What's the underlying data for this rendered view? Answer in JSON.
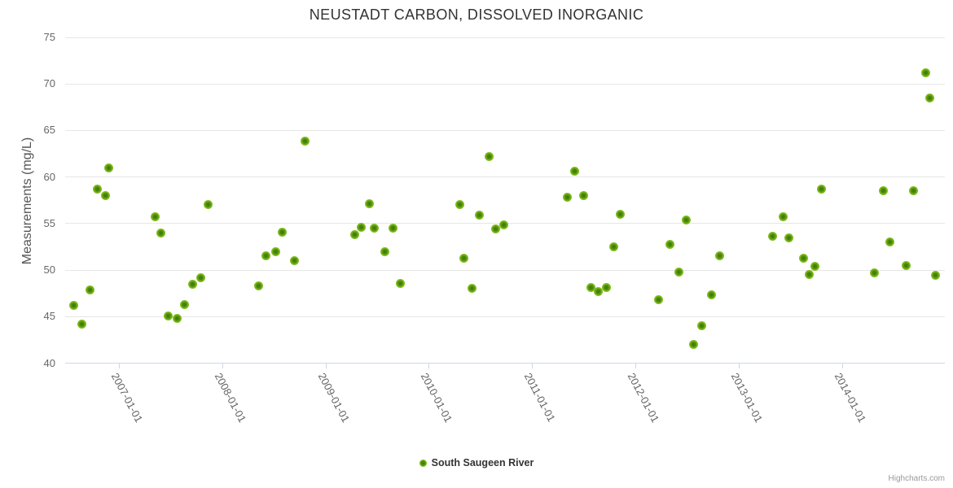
{
  "chart": {
    "title": "NEUSTADT CARBON, DISSOLVED INORGANIC",
    "credits": "Highcharts.com"
  },
  "colors": {
    "accent_marker": "#84bd1e",
    "marker_center": "#3e7c06",
    "gridline": "#e6e6e6",
    "axis_line": "#ccd6eb",
    "title_text": "#333333",
    "axis_label_text": "#666666",
    "legend_text": "#333333",
    "credits_text": "#999999"
  },
  "chart_data": {
    "type": "scatter",
    "title": "NEUSTADT CARBON, DISSOLVED INORGANIC",
    "xlabel": "",
    "ylabel": "Measurements (mg/L)",
    "ylim": [
      40,
      75
    ],
    "yticks": [
      40,
      45,
      50,
      55,
      60,
      65,
      70,
      75
    ],
    "xticks": [
      "2007-01-01",
      "2008-01-01",
      "2009-01-01",
      "2010-01-01",
      "2011-01-01",
      "2012-01-01",
      "2013-01-01",
      "2014-01-01"
    ],
    "grid": "horizontal-only",
    "legend_position": "bottom-center",
    "series": [
      {
        "name": "South Saugeen River",
        "data": [
          [
            "2006-07-26",
            46.2
          ],
          [
            "2006-08-24",
            44.2
          ],
          [
            "2006-09-22",
            47.9
          ],
          [
            "2006-10-18",
            58.7
          ],
          [
            "2006-11-15",
            58.0
          ],
          [
            "2006-11-28",
            61.0
          ],
          [
            "2007-05-09",
            55.7
          ],
          [
            "2007-05-31",
            54.0
          ],
          [
            "2007-06-24",
            45.1
          ],
          [
            "2007-07-26",
            44.8
          ],
          [
            "2007-08-21",
            46.3
          ],
          [
            "2007-09-18",
            48.5
          ],
          [
            "2007-10-17",
            49.2
          ],
          [
            "2007-11-14",
            57.0
          ],
          [
            "2008-05-09",
            48.3
          ],
          [
            "2008-06-05",
            51.5
          ],
          [
            "2008-07-09",
            52.0
          ],
          [
            "2008-08-01",
            54.1
          ],
          [
            "2008-09-12",
            51.0
          ],
          [
            "2008-10-20",
            63.9
          ],
          [
            "2009-04-15",
            53.8
          ],
          [
            "2009-05-08",
            54.6
          ],
          [
            "2009-06-05",
            57.1
          ],
          [
            "2009-06-23",
            54.5
          ],
          [
            "2009-07-30",
            52.0
          ],
          [
            "2009-08-28",
            54.5
          ],
          [
            "2009-09-23",
            48.6
          ],
          [
            "2010-04-20",
            57.0
          ],
          [
            "2010-05-05",
            51.3
          ],
          [
            "2010-06-02",
            48.0
          ],
          [
            "2010-06-29",
            55.9
          ],
          [
            "2010-08-01",
            62.2
          ],
          [
            "2010-08-25",
            54.4
          ],
          [
            "2010-09-24",
            54.9
          ],
          [
            "2011-05-06",
            57.8
          ],
          [
            "2011-06-02",
            60.6
          ],
          [
            "2011-07-01",
            58.0
          ],
          [
            "2011-07-28",
            48.1
          ],
          [
            "2011-08-23",
            47.7
          ],
          [
            "2011-09-21",
            48.1
          ],
          [
            "2011-10-18",
            52.5
          ],
          [
            "2011-11-10",
            56.0
          ],
          [
            "2012-03-22",
            46.8
          ],
          [
            "2012-05-04",
            52.8
          ],
          [
            "2012-06-02",
            49.8
          ],
          [
            "2012-06-28",
            55.4
          ],
          [
            "2012-07-25",
            42.0
          ],
          [
            "2012-08-22",
            44.0
          ],
          [
            "2012-09-27",
            47.3
          ],
          [
            "2012-10-24",
            51.5
          ],
          [
            "2013-05-01",
            53.6
          ],
          [
            "2013-06-08",
            55.7
          ],
          [
            "2013-06-28",
            53.5
          ],
          [
            "2013-08-18",
            51.3
          ],
          [
            "2013-09-07",
            49.5
          ],
          [
            "2013-09-26",
            50.4
          ],
          [
            "2013-10-19",
            58.7
          ],
          [
            "2014-04-26",
            49.7
          ],
          [
            "2014-05-26",
            58.5
          ],
          [
            "2014-06-19",
            53.0
          ],
          [
            "2014-08-15",
            50.5
          ],
          [
            "2014-09-12",
            58.5
          ],
          [
            "2014-10-23",
            71.2
          ],
          [
            "2014-11-06",
            68.5
          ],
          [
            "2014-11-27",
            49.4
          ]
        ]
      }
    ]
  }
}
